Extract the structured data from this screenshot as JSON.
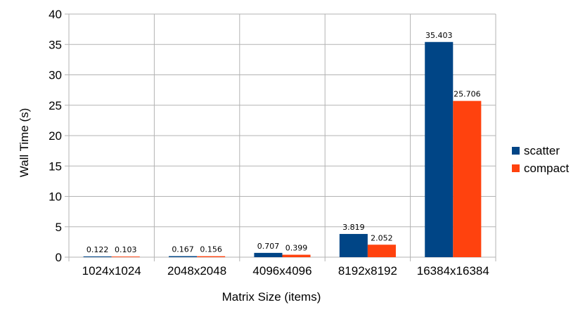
{
  "chart_data": {
    "type": "bar",
    "title": "",
    "xlabel": "Matrix Size (items)",
    "ylabel": "Wall Time (s)",
    "ylim": [
      0,
      40
    ],
    "ytick_step": 5,
    "grid": true,
    "legend_position": "right",
    "categories": [
      "1024x1024",
      "2048x2048",
      "4096x4096",
      "8192x8192",
      "16384x16384"
    ],
    "series": [
      {
        "name": "scatter",
        "color": "#004586",
        "values": [
          0.122,
          0.167,
          0.707,
          3.819,
          35.403
        ],
        "labels": [
          "0.122",
          "0.167",
          "0.707",
          "3.819",
          "35.403"
        ]
      },
      {
        "name": "compact",
        "color": "#ff420e",
        "values": [
          0.103,
          0.156,
          0.399,
          2.052,
          25.706
        ],
        "labels": [
          "0.103",
          "0.156",
          "0.399",
          "2.052",
          "25.706"
        ]
      }
    ]
  }
}
